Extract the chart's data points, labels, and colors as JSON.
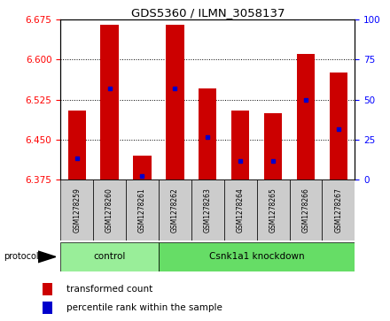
{
  "title": "GDS5360 / ILMN_3058137",
  "samples": [
    "GSM1278259",
    "GSM1278260",
    "GSM1278261",
    "GSM1278262",
    "GSM1278263",
    "GSM1278264",
    "GSM1278265",
    "GSM1278266",
    "GSM1278267"
  ],
  "red_tops": [
    6.505,
    6.665,
    6.42,
    6.665,
    6.545,
    6.505,
    6.5,
    6.61,
    6.575
  ],
  "blue_vals": [
    6.415,
    6.545,
    6.382,
    6.545,
    6.455,
    6.41,
    6.41,
    6.525,
    6.47
  ],
  "baseline": 6.375,
  "ylim_left": [
    6.375,
    6.675
  ],
  "ylim_right": [
    0,
    100
  ],
  "yticks_left": [
    6.375,
    6.45,
    6.525,
    6.6,
    6.675
  ],
  "yticks_right": [
    0,
    25,
    50,
    75,
    100
  ],
  "bar_color": "#cc0000",
  "blue_color": "#0000cc",
  "bg_plot": "#ffffff",
  "bg_sample": "#cccccc",
  "bg_control": "#99ee99",
  "bg_knockdown": "#66dd66",
  "control_label": "control",
  "knockdown_label": "Csnk1a1 knockdown",
  "protocol_label": "protocol",
  "legend_red": "transformed count",
  "legend_blue": "percentile rank within the sample",
  "control_count": 3,
  "bar_width": 0.55
}
